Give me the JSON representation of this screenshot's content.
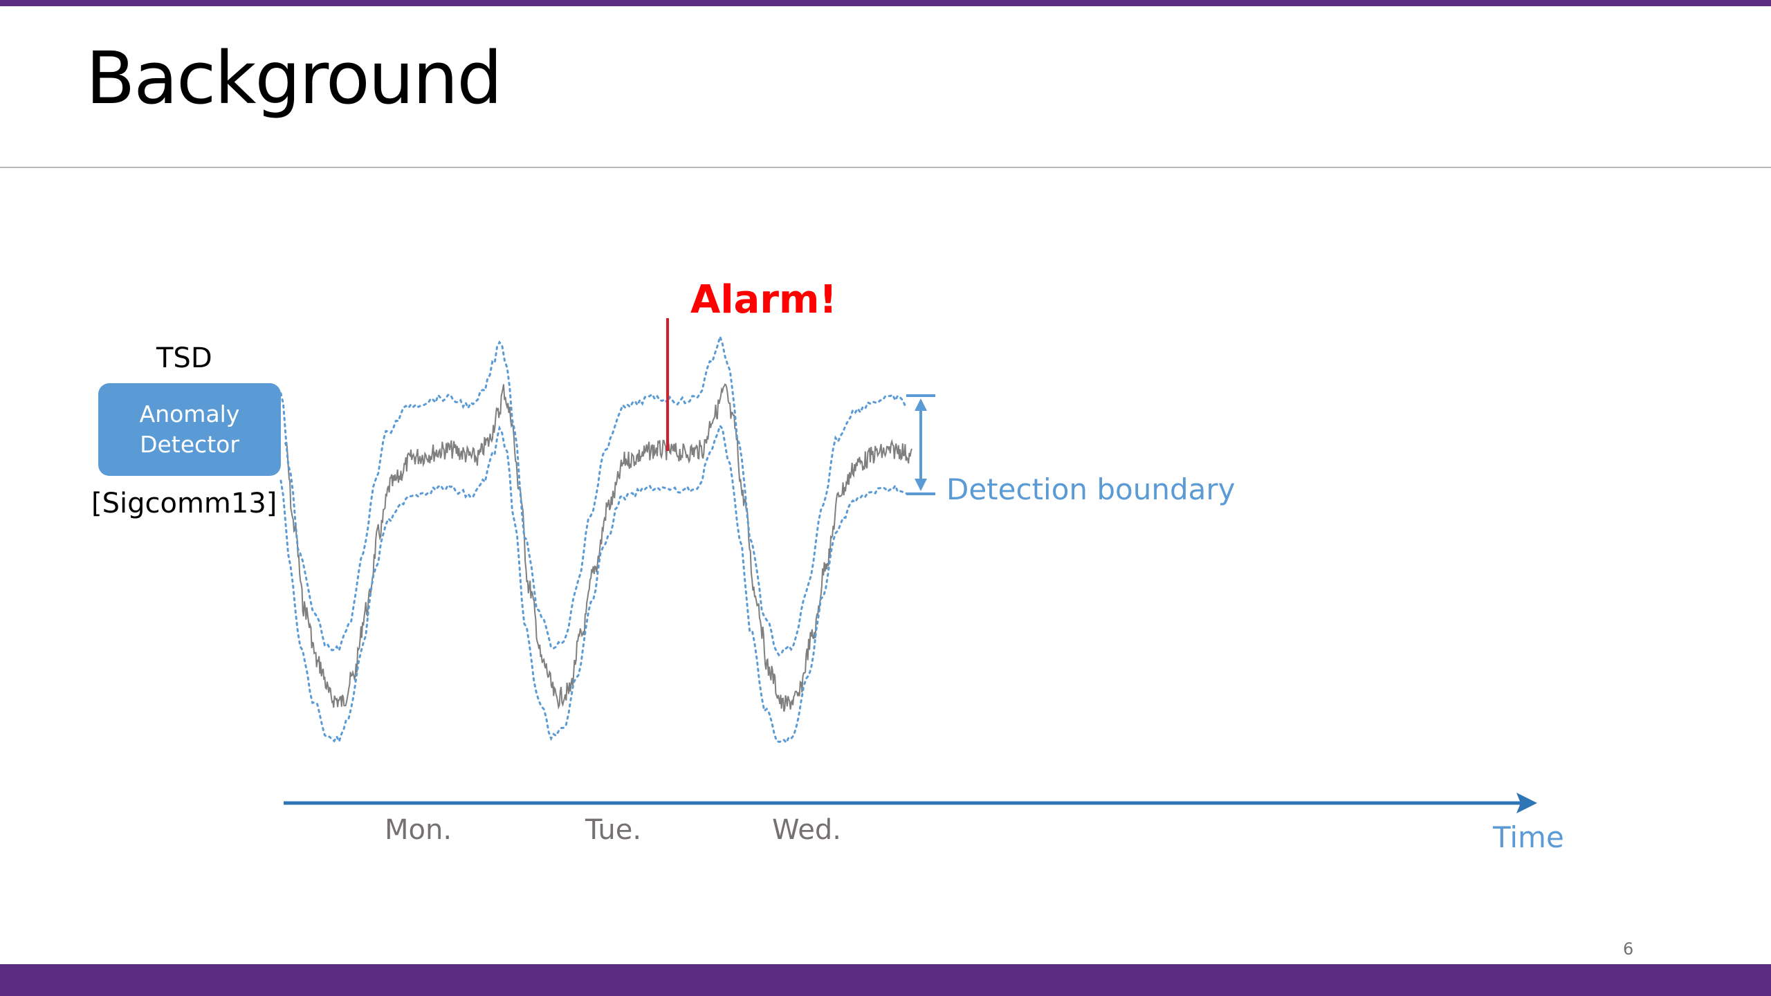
{
  "slide": {
    "title": "Background",
    "page_number": "6"
  },
  "diagram": {
    "tsd_label": "TSD",
    "detector_label": "Anomaly Detector",
    "citation": "[Sigcomm13]",
    "alarm_label": "Alarm!",
    "boundary_label": "Detection boundary",
    "axis_label": "Time",
    "days": [
      "Mon.",
      "Tue.",
      "Wed."
    ]
  },
  "colors": {
    "accent_bar": "#5b2d82",
    "series": "#7f7f7f",
    "boundary": "#5b9bd5",
    "alarm": "#ff0000",
    "detector_box": "#5b9bd5",
    "day_text": "#767171"
  },
  "icons": {
    "axis_arrow": "right-arrow-icon",
    "boundary_marker": "double-arrow-icon"
  }
}
